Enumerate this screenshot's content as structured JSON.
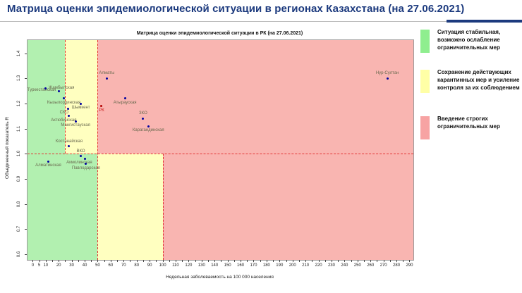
{
  "header": {
    "title": "Матрица оценки эпидемиологической ситуации в регионах Казахстана (на 27.06.2021)"
  },
  "colors": {
    "title": "#1c3a7e",
    "rule": "#bcbcbc",
    "rule_accent": "#1c3a7e"
  },
  "legend": {
    "items": [
      {
        "color": "#8fee8f",
        "lines": [
          "Ситуация стабильная,",
          "возможно ослабление",
          "ограничительных мер"
        ]
      },
      {
        "color": "#ffffa6",
        "lines": [
          "Сохранение действующих",
          "карантинных мер и усиление",
          "контроля за их соблюдением"
        ]
      },
      {
        "color": "#f7a3a3",
        "lines": [
          "Введение строгих",
          "ограничительных мер"
        ]
      }
    ]
  },
  "chart_data": {
    "type": "scatter",
    "title": "Матрица оценки эпидемиологической ситуации в РК (на 27.06.2021)",
    "xlabel": "Недельная заболеваемость на 100 000 населения",
    "ylabel": "Объединенный показатель R",
    "xlim": [
      -4,
      293
    ],
    "ylim": [
      0.577,
      1.453
    ],
    "x_tick_labels": [
      0,
      5,
      10,
      20,
      30,
      40,
      50,
      60,
      70,
      80,
      90,
      100,
      110,
      120,
      130,
      140,
      150,
      160,
      170,
      180,
      190,
      200,
      210,
      220,
      230,
      240,
      250,
      260,
      270,
      280,
      290
    ],
    "x_tick_minor_step": 5,
    "y_ticks": [
      0.6,
      0.7,
      0.8,
      0.9,
      1.0,
      1.1,
      1.2,
      1.3,
      1.4
    ],
    "grid": false,
    "legend_position": "right",
    "threshold_r": 1.0,
    "zones": {
      "above_r1": {
        "green_x_max": 25,
        "yellow_x_max": 50
      },
      "below_r1": {
        "green_x_max": 50,
        "yellow_x_max": 100
      }
    },
    "points": [
      {
        "name": "Жамбылская",
        "x": 10,
        "r": 1.26,
        "label_side": "right"
      },
      {
        "name": "Туркестанская",
        "x": 20,
        "r": 1.25,
        "label_side": "left"
      },
      {
        "name": "Кызылординская",
        "x": 24,
        "r": 1.22,
        "label_side": "below"
      },
      {
        "name": "СКО",
        "x": 27,
        "r": 1.18,
        "label_side": "below-left"
      },
      {
        "name": "Шымкент",
        "x": 37,
        "r": 1.2,
        "label_side": "below"
      },
      {
        "name": "Актюбинская",
        "x": 28,
        "r": 1.15,
        "label_side": "below-left"
      },
      {
        "name": "Мангистауская",
        "x": 33,
        "r": 1.13,
        "label_side": "below"
      },
      {
        "name": "Костанайская",
        "x": 28,
        "r": 1.03,
        "label_side": "above"
      },
      {
        "name": "Алматинская",
        "x": 12,
        "r": 0.97,
        "label_side": "below"
      },
      {
        "name": "ВКО",
        "x": 37,
        "r": 0.99,
        "label_side": "above"
      },
      {
        "name": "Акмолинская",
        "x": 40,
        "r": 0.98,
        "label_side": "below-left"
      },
      {
        "name": "Павлодарская",
        "x": 41,
        "r": 0.96,
        "label_side": "below"
      },
      {
        "name": "Алматы",
        "x": 57,
        "r": 1.3,
        "label_side": "above"
      },
      {
        "name": "РК",
        "x": 53,
        "r": 1.19,
        "label_side": "below",
        "highlight": true
      },
      {
        "name": "Атырауская",
        "x": 71,
        "r": 1.22,
        "label_side": "below"
      },
      {
        "name": "ЗКО",
        "x": 85,
        "r": 1.14,
        "label_side": "above"
      },
      {
        "name": "Карагандинская",
        "x": 89,
        "r": 1.11,
        "label_side": "below"
      },
      {
        "name": "Нур-Султан",
        "x": 273,
        "r": 1.3,
        "label_side": "above"
      }
    ],
    "colors": {
      "zone_green": "#b2f0b0",
      "zone_yellow": "#ffffc0",
      "zone_red": "#f9b5b1",
      "dashed_line": "#e23333",
      "point": "#0000a0",
      "point_highlight": "#b30000",
      "point_label": "#6a6a4f",
      "point_label_highlight": "#cc2222"
    }
  }
}
